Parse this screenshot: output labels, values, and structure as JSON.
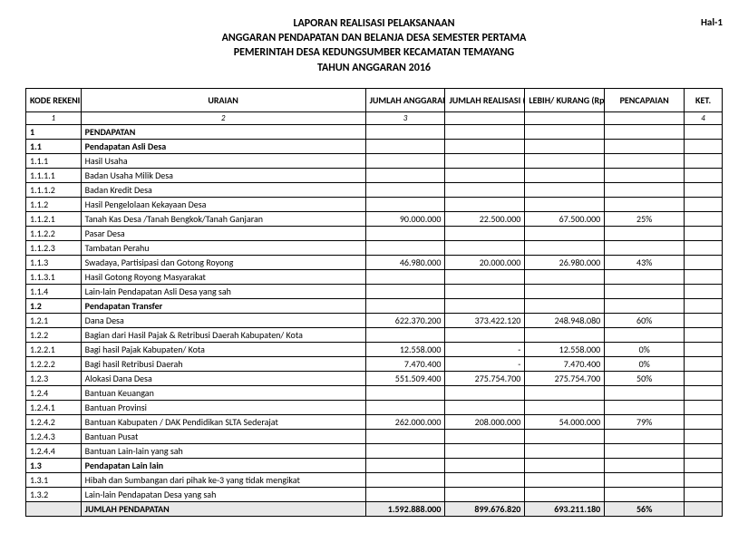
{
  "page_label": "Hal-1",
  "title_lines": [
    "LAPORAN REALISASI PELAKSANAAN",
    "ANGGARAN PENDAPATAN DAN BELANJA DESA SEMESTER PERTAMA",
    "PEMERINTAH DESA KEDUNGSUMBER KECAMATAN TEMAYANG",
    "TAHUN ANGGARAN 2016"
  ],
  "columns": [
    "KODE REKENING",
    "URAIAN",
    "JUMLAH ANGGARAN (Rp.)",
    "JUMLAH REALISASI (Rp.)",
    "LEBIH/ KURANG (Rp.)",
    "PENCAPAIAN",
    "KET."
  ],
  "colnums": [
    "1",
    "2",
    "3",
    "",
    "",
    "",
    "4"
  ],
  "rows": [
    {
      "kode": "1",
      "uraian": "PENDAPATAN",
      "anggaran": "",
      "realisasi": "",
      "lebih": "",
      "pct": "",
      "ket": "",
      "bold": true
    },
    {
      "kode": "1.1",
      "uraian": "Pendapatan Asli Desa",
      "anggaran": "",
      "realisasi": "",
      "lebih": "",
      "pct": "",
      "ket": "",
      "bold": true
    },
    {
      "kode": "1.1.1",
      "uraian": "Hasil Usaha",
      "anggaran": "",
      "realisasi": "",
      "lebih": "",
      "pct": "",
      "ket": ""
    },
    {
      "kode": "1.1.1.1",
      "uraian": "Badan Usaha Milik Desa",
      "anggaran": "",
      "realisasi": "",
      "lebih": "",
      "pct": "",
      "ket": ""
    },
    {
      "kode": "1.1.1.2",
      "uraian": "Badan Kredit Desa",
      "anggaran": "",
      "realisasi": "",
      "lebih": "",
      "pct": "",
      "ket": ""
    },
    {
      "kode": "1.1.2",
      "uraian": "Hasil Pengelolaan Kekayaan Desa",
      "anggaran": "",
      "realisasi": "",
      "lebih": "",
      "pct": "",
      "ket": ""
    },
    {
      "kode": "1.1.2.1",
      "uraian": "Tanah Kas Desa /Tanah Bengkok/Tanah Ganjaran",
      "anggaran": "90.000.000",
      "realisasi": "22.500.000",
      "lebih": "67.500.000",
      "pct": "25%",
      "ket": ""
    },
    {
      "kode": "1.1.2.2",
      "uraian": "Pasar Desa",
      "anggaran": "",
      "realisasi": "",
      "lebih": "",
      "pct": "",
      "ket": ""
    },
    {
      "kode": "1.1.2.3",
      "uraian": "Tambatan Perahu",
      "anggaran": "",
      "realisasi": "",
      "lebih": "",
      "pct": "",
      "ket": ""
    },
    {
      "kode": "1.1.3",
      "uraian": "Swadaya,  Partisipasi dan Gotong  Royong",
      "anggaran": "46.980.000",
      "realisasi": "20.000.000",
      "lebih": "26.980.000",
      "pct": "43%",
      "ket": ""
    },
    {
      "kode": "1.1.3.1",
      "uraian": "Hasil Gotong Royong Masyarakat",
      "anggaran": "",
      "realisasi": "",
      "lebih": "",
      "pct": "",
      "ket": ""
    },
    {
      "kode": "1.1.4",
      "uraian": "Lain-lain Pendapatan Asli Desa yang sah",
      "anggaran": "",
      "realisasi": "",
      "lebih": "",
      "pct": "",
      "ket": ""
    },
    {
      "kode": "1.2",
      "uraian": "Pendapatan Transfer",
      "anggaran": "",
      "realisasi": "",
      "lebih": "",
      "pct": "",
      "ket": "",
      "bold": true
    },
    {
      "kode": "1.2.1",
      "uraian": "Dana Desa",
      "anggaran": "622.370.200",
      "realisasi": "373.422.120",
      "lebih": "248.948.080",
      "pct": "60%",
      "ket": ""
    },
    {
      "kode": "1.2.2",
      "uraian": "Bagian dari Hasil Pajak & Retribusi Daerah Kabupaten/ Kota",
      "anggaran": "",
      "realisasi": "",
      "lebih": "",
      "pct": "",
      "ket": ""
    },
    {
      "kode": "1.2.2.1",
      "uraian": "Bagi hasil Pajak Kabupaten/ Kota",
      "anggaran": "12.558.000",
      "realisasi": "-",
      "lebih": "12.558.000",
      "pct": "0%",
      "ket": ""
    },
    {
      "kode": "1.2.2.2",
      "uraian": "Bagi hasil Retribusi Daerah",
      "anggaran": "7.470.400",
      "realisasi": "-",
      "lebih": "7.470.400",
      "pct": "0%",
      "ket": ""
    },
    {
      "kode": "1.2.3",
      "uraian": "Alokasi Dana Desa",
      "anggaran": "551.509.400",
      "realisasi": "275.754.700",
      "lebih": "275.754.700",
      "pct": "50%",
      "ket": ""
    },
    {
      "kode": "1.2.4",
      "uraian": "Bantuan Keuangan",
      "anggaran": "",
      "realisasi": "",
      "lebih": "",
      "pct": "",
      "ket": ""
    },
    {
      "kode": "1.2.4.1",
      "uraian": "Bantuan Provinsi",
      "anggaran": "",
      "realisasi": "",
      "lebih": "",
      "pct": "",
      "ket": ""
    },
    {
      "kode": "1.2.4.2",
      "uraian": "Bantuan Kabupaten / DAK Pendidikan SLTA Sederajat",
      "anggaran": "262.000.000",
      "realisasi": "208.000.000",
      "lebih": "54.000.000",
      "pct": "79%",
      "ket": ""
    },
    {
      "kode": "1.2.4.3",
      "uraian": "Bantuan Pusat",
      "anggaran": "",
      "realisasi": "",
      "lebih": "",
      "pct": "",
      "ket": ""
    },
    {
      "kode": "1.2.4.4",
      "uraian": "Bantuan Lain-lain yang sah",
      "anggaran": "",
      "realisasi": "",
      "lebih": "",
      "pct": "",
      "ket": ""
    },
    {
      "kode": "1.3",
      "uraian": "Pendapatan Lain lain",
      "anggaran": "",
      "realisasi": "",
      "lebih": "",
      "pct": "",
      "ket": "",
      "bold": true
    },
    {
      "kode": "1.3.1",
      "uraian": "Hibah dan Sumbangan dari pihak ke-3 yang tidak mengikat",
      "anggaran": "",
      "realisasi": "",
      "lebih": "",
      "pct": "",
      "ket": ""
    },
    {
      "kode": "1.3.2",
      "uraian": "Lain-lain Pendapatan Desa yang sah",
      "anggaran": "",
      "realisasi": "",
      "lebih": "",
      "pct": "",
      "ket": ""
    },
    {
      "kode": "",
      "uraian": "JUMLAH PENDAPATAN",
      "anggaran": "1.592.888.000",
      "realisasi": "899.676.820",
      "lebih": "693.211.180",
      "pct": "56%",
      "ket": "",
      "total": true
    }
  ]
}
